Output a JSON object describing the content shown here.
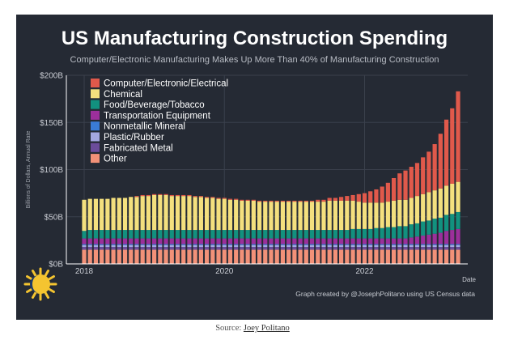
{
  "chart_data": {
    "type": "bar",
    "stacked": true,
    "title": "US Manufacturing Construction Spending",
    "subtitle": "Computer/Electronic Manufacturing Makes Up More Than 40% of Manufacturing Construction",
    "ylabel": "Billions of Dollars, Annual Rate",
    "xlabel": "Date",
    "ylim": [
      0,
      200
    ],
    "y_ticks": [
      "$0B",
      "$50B",
      "$100B",
      "$150B",
      "$200B"
    ],
    "y_tick_values": [
      0,
      50,
      100,
      150,
      200
    ],
    "x_ticks": [
      "2018",
      "2020",
      "2022"
    ],
    "x_start": "2018-01",
    "x_end": "2023-05",
    "legend_position": "top-left",
    "grid": true,
    "background": "#252a34",
    "series": [
      {
        "name": "Other",
        "color": "#f29178",
        "values": [
          15,
          15,
          15,
          15,
          15,
          15,
          15,
          15,
          15,
          15,
          15,
          15,
          15,
          15,
          15,
          15,
          15,
          15,
          15,
          15,
          15,
          15,
          15,
          15,
          15,
          15,
          15,
          15,
          15,
          15,
          15,
          15,
          15,
          15,
          15,
          15,
          15,
          15,
          15,
          15,
          15,
          15,
          15,
          15,
          15,
          15,
          15,
          15,
          15,
          15,
          15,
          15,
          15,
          15,
          15,
          15,
          15,
          15,
          15,
          15,
          15,
          15,
          15,
          15,
          15
        ]
      },
      {
        "name": "Fabricated Metal",
        "color": "#6b4c9a",
        "values": [
          3,
          3,
          3,
          3,
          3,
          3,
          3,
          3,
          3,
          3,
          3,
          3,
          3,
          3,
          3,
          3,
          3,
          3,
          3,
          3,
          3,
          3,
          3,
          3,
          3,
          3,
          3,
          3,
          3,
          3,
          3,
          3,
          3,
          3,
          3,
          3,
          3,
          3,
          3,
          3,
          3,
          3,
          3,
          3,
          3,
          3,
          3,
          3,
          3,
          3,
          3,
          3,
          3,
          3,
          3,
          3,
          3,
          3,
          3,
          3,
          3,
          3,
          3,
          3,
          3
        ]
      },
      {
        "name": "Plastic/Rubber",
        "color": "#a4a7e0",
        "values": [
          2,
          2,
          2,
          2,
          2,
          2,
          2,
          2,
          2,
          2,
          2,
          2,
          2,
          2,
          2,
          2,
          2,
          2,
          2,
          2,
          2,
          2,
          2,
          2,
          2,
          2,
          2,
          2,
          2,
          2,
          2,
          2,
          2,
          2,
          2,
          2,
          2,
          2,
          2,
          2,
          2,
          2,
          2,
          2,
          2,
          2,
          2,
          2,
          2,
          2,
          2,
          2,
          2,
          2,
          2,
          2,
          2,
          2,
          2,
          2,
          2,
          2,
          2,
          2,
          2
        ]
      },
      {
        "name": "Nonmetallic Mineral",
        "color": "#3a7bd5",
        "values": [
          1,
          1,
          1,
          1,
          1,
          1,
          1,
          1,
          1,
          1,
          1,
          1,
          1,
          1,
          1,
          1,
          1,
          1,
          1,
          1,
          1,
          1,
          1,
          1,
          1,
          1,
          1,
          1,
          1,
          1,
          1,
          1,
          1,
          1,
          1,
          1,
          1,
          1,
          1,
          1,
          1,
          1,
          1,
          1,
          1,
          1,
          1,
          1,
          1,
          1,
          1,
          1,
          1,
          1,
          1,
          1,
          1,
          1,
          1,
          1,
          1,
          1,
          1,
          1,
          1
        ]
      },
      {
        "name": "Transportation Equipment",
        "color": "#9b2f9b",
        "values": [
          6,
          6,
          6,
          6,
          6,
          6,
          6,
          6,
          6,
          6,
          6,
          6,
          6,
          6,
          6,
          6,
          6,
          6,
          6,
          6,
          6,
          6,
          6,
          6,
          6,
          6,
          6,
          6,
          6,
          6,
          6,
          6,
          6,
          6,
          6,
          6,
          6,
          6,
          6,
          6,
          6,
          6,
          6,
          6,
          6,
          6,
          6,
          6,
          6,
          6,
          6,
          6,
          6,
          6,
          6,
          6,
          7,
          8,
          9,
          10,
          11,
          12,
          14,
          15,
          16
        ]
      },
      {
        "name": "Food/Beverage/Tobacco",
        "color": "#12917f",
        "values": [
          8,
          9,
          9,
          9,
          9,
          9,
          9,
          9,
          9,
          9,
          9,
          9,
          9,
          9,
          9,
          9,
          9,
          9,
          9,
          9,
          9,
          9,
          9,
          9,
          9,
          9,
          9,
          9,
          9,
          9,
          9,
          9,
          9,
          9,
          9,
          9,
          9,
          9,
          9,
          9,
          9,
          9,
          9,
          9,
          9,
          9,
          10,
          10,
          10,
          10,
          11,
          11,
          12,
          12,
          13,
          13,
          14,
          14,
          15,
          15,
          16,
          16,
          17,
          17,
          18
        ]
      },
      {
        "name": "Chemical",
        "color": "#f4e07e",
        "values": [
          33,
          33,
          33,
          33,
          33,
          34,
          34,
          34,
          35,
          35,
          36,
          36,
          37,
          37,
          37,
          36,
          36,
          36,
          36,
          35,
          35,
          34,
          34,
          33,
          33,
          32,
          32,
          31,
          31,
          31,
          30,
          30,
          30,
          30,
          30,
          30,
          30,
          30,
          30,
          30,
          30,
          30,
          31,
          31,
          31,
          31,
          30,
          29,
          28,
          28,
          27,
          27,
          27,
          28,
          28,
          28,
          28,
          29,
          29,
          30,
          30,
          31,
          31,
          32,
          32
        ]
      },
      {
        "name": "Computer/Electronic/Electrical",
        "color": "#e0594b",
        "values": [
          0,
          0,
          0,
          0,
          0,
          0,
          0,
          0,
          0,
          1,
          1,
          1,
          1,
          1,
          1,
          1,
          1,
          1,
          1,
          1,
          1,
          1,
          1,
          1,
          1,
          1,
          1,
          1,
          1,
          1,
          1,
          1,
          1,
          1,
          1,
          1,
          1,
          1,
          1,
          1,
          2,
          2,
          3,
          3,
          4,
          5,
          6,
          8,
          10,
          12,
          14,
          17,
          20,
          24,
          28,
          31,
          33,
          35,
          39,
          43,
          49,
          58,
          70,
          80,
          96
        ]
      }
    ]
  },
  "caption": "Graph created by @JosephPolitano using US Census data",
  "source_label": "Source:",
  "source_author": "Joey Politano",
  "logo": {
    "description": "sun-logo",
    "colors": [
      "#f4c430",
      "#1b3a6b"
    ]
  }
}
